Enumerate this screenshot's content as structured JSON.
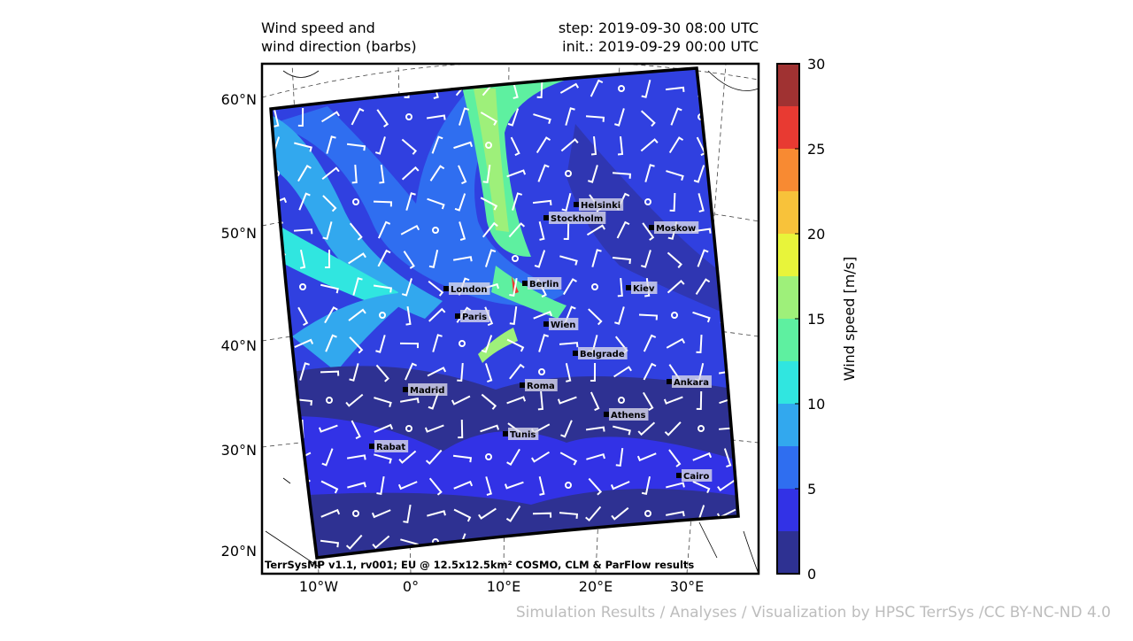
{
  "header": {
    "title": [
      "Wind speed and",
      "wind direction (barbs)"
    ],
    "step": "step: 2019-09-30 08:00 UTC",
    "init": "init.: 2019-09-29 00:00 UTC"
  },
  "lat_labels": [
    "60°N",
    "50°N",
    "40°N",
    "30°N",
    "20°N"
  ],
  "lon_labels": [
    "10°W",
    "0°",
    "10°E",
    "20°E",
    "30°E"
  ],
  "cities": [
    "Helsinki",
    "Stockholm",
    "Moskow",
    "Berlin",
    "London",
    "Kiev",
    "Paris",
    "Wien",
    "Belgrade",
    "Ankara",
    "Madrid",
    "Roma",
    "Athens",
    "Tunis",
    "Rabat",
    "Cairo"
  ],
  "footer": "TerrSysMP v1.1, rv001; EU @ 12.5x12.5km² COSMO, CLM & ParFlow results",
  "colorbar": {
    "label": "Wind speed [m/s]",
    "lim": [
      0,
      30
    ],
    "ticks": [
      0,
      5,
      10,
      15,
      20,
      25,
      30
    ],
    "levels": [
      0,
      2.5,
      5,
      7.5,
      10,
      12.5,
      15,
      17.5,
      20,
      22.5,
      25,
      27.5,
      30
    ],
    "colors": [
      "#2e3192",
      "#3232e6",
      "#2f6ef0",
      "#32a8ee",
      "#30e6e0",
      "#5ef0a0",
      "#9ef07a",
      "#e8f43a",
      "#f8c23a",
      "#f88a32",
      "#e83a32",
      "#a03232"
    ]
  },
  "credit": "Simulation Results / Analyses / Visualization by HPSC TerrSys /CC BY-NC-ND 4.0"
}
